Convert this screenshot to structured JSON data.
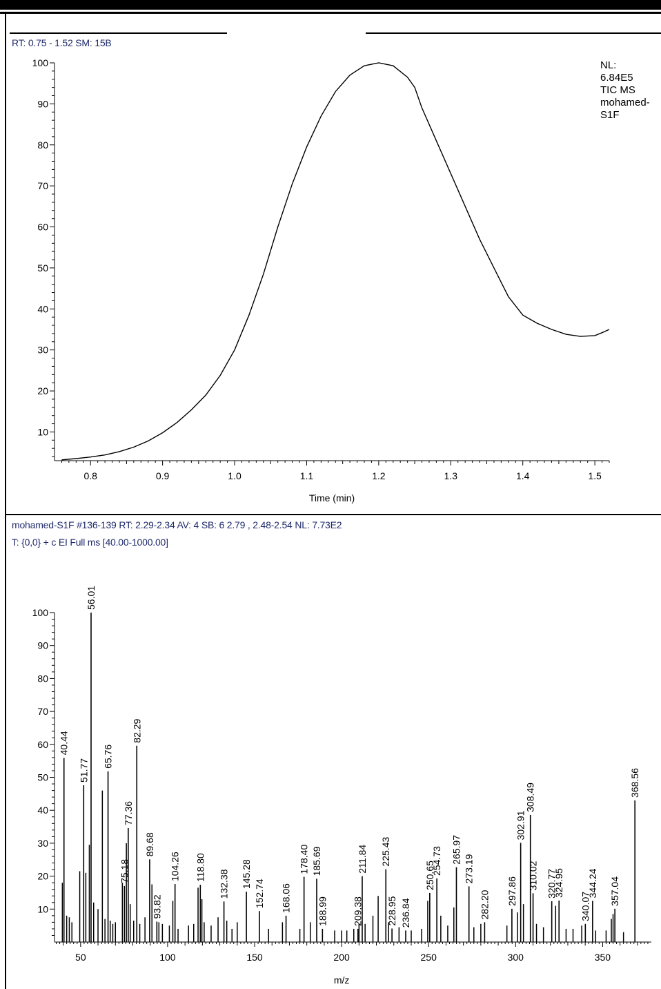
{
  "chart_data": [
    {
      "type": "line",
      "header": "RT: 0.75 - 1.52   SM: 15B",
      "info": [
        "NL:",
        "6.84E5",
        "TIC  MS",
        "mohamed-",
        "S1F"
      ],
      "xlabel": "Time (min)",
      "ylabel": "",
      "xlim": [
        0.75,
        1.52
      ],
      "ylim": [
        3,
        100
      ],
      "xticks": [
        "0.8",
        "0.9",
        "1.0",
        "1.1",
        "1.2",
        "1.3",
        "1.4",
        "1.5"
      ],
      "yticks": [
        "10",
        "20",
        "30",
        "40",
        "50",
        "60",
        "70",
        "80",
        "90",
        "100"
      ],
      "x": [
        0.76,
        0.78,
        0.8,
        0.82,
        0.84,
        0.86,
        0.88,
        0.9,
        0.92,
        0.94,
        0.96,
        0.98,
        1.0,
        1.02,
        1.04,
        1.06,
        1.08,
        1.1,
        1.12,
        1.14,
        1.16,
        1.18,
        1.2,
        1.22,
        1.24,
        1.25,
        1.26,
        1.28,
        1.3,
        1.32,
        1.34,
        1.36,
        1.38,
        1.4,
        1.42,
        1.44,
        1.46,
        1.48,
        1.5,
        1.51,
        1.52
      ],
      "y": [
        3.2,
        3.5,
        3.9,
        4.4,
        5.2,
        6.3,
        7.8,
        9.8,
        12.3,
        15.4,
        19.0,
        23.8,
        30.0,
        38.5,
        48.5,
        60.0,
        70.5,
        79.5,
        87.0,
        93.0,
        97.0,
        99.3,
        100.0,
        99.3,
        96.5,
        94.0,
        89.0,
        81.0,
        73.0,
        65.0,
        57.0,
        50.0,
        43.0,
        38.5,
        36.5,
        35.0,
        33.8,
        33.3,
        33.5,
        34.2,
        35.0
      ]
    },
    {
      "type": "bar",
      "header1": "mohamed-S1F #136-139   RT: 2.29-2.34   AV: 4   SB: 6  2.79 , 2.48-2.54   NL: 7.73E2",
      "header2": "T: {0,0}  + c EI Full ms [40.00-1000.00]",
      "xlabel": "m/z",
      "ylabel": "",
      "xlim": [
        35,
        378
      ],
      "ylim": [
        0,
        100
      ],
      "xticks": [
        "50",
        "100",
        "150",
        "200",
        "250",
        "300",
        "350"
      ],
      "yticks": [
        "10",
        "20",
        "30",
        "40",
        "50",
        "60",
        "70",
        "80",
        "90",
        "100"
      ],
      "labeled_peaks": [
        {
          "label": "40.44",
          "mz": 40.44,
          "y": 55.9
        },
        {
          "label": "51.77",
          "mz": 51.77,
          "y": 47.6
        },
        {
          "label": "56.01",
          "mz": 56.01,
          "y": 100
        },
        {
          "label": "65.76",
          "mz": 65.76,
          "y": 51.8
        },
        {
          "label": "75.18",
          "mz": 75.18,
          "y": 17.0
        },
        {
          "label": "77.36",
          "mz": 77.36,
          "y": 34.6
        },
        {
          "label": "82.29",
          "mz": 82.29,
          "y": 59.6
        },
        {
          "label": "89.68",
          "mz": 89.68,
          "y": 25.1
        },
        {
          "label": "93.82",
          "mz": 93.82,
          "y": 6.2
        },
        {
          "label": "104.26",
          "mz": 104.26,
          "y": 17.6
        },
        {
          "label": "118.80",
          "mz": 118.8,
          "y": 17.4
        },
        {
          "label": "132.38",
          "mz": 132.38,
          "y": 12.3
        },
        {
          "label": "145.28",
          "mz": 145.28,
          "y": 15.3
        },
        {
          "label": "152.74",
          "mz": 152.74,
          "y": 9.4
        },
        {
          "label": "168.06",
          "mz": 168.06,
          "y": 8.0
        },
        {
          "label": "178.40",
          "mz": 178.4,
          "y": 19.8
        },
        {
          "label": "185.69",
          "mz": 185.69,
          "y": 19.2
        },
        {
          "label": "188.99",
          "mz": 188.99,
          "y": 4.0
        },
        {
          "label": "209.38",
          "mz": 209.38,
          "y": 4.0
        },
        {
          "label": "211.84",
          "mz": 211.84,
          "y": 20.0
        },
        {
          "label": "225.43",
          "mz": 225.43,
          "y": 22.1
        },
        {
          "label": "228.95",
          "mz": 228.95,
          "y": 4.1
        },
        {
          "label": "236.84",
          "mz": 236.84,
          "y": 3.5
        },
        {
          "label": "250.65",
          "mz": 250.65,
          "y": 14.9
        },
        {
          "label": "254.73",
          "mz": 254.73,
          "y": 19.3
        },
        {
          "label": "265.97",
          "mz": 265.97,
          "y": 22.7
        },
        {
          "label": "273.19",
          "mz": 273.19,
          "y": 16.9
        },
        {
          "label": "282.20",
          "mz": 282.2,
          "y": 6.0
        },
        {
          "label": "297.86",
          "mz": 297.86,
          "y": 10.1
        },
        {
          "label": "302.91",
          "mz": 302.91,
          "y": 30.1
        },
        {
          "label": "308.49",
          "mz": 308.49,
          "y": 38.6
        },
        {
          "label": "310.02",
          "mz": 310.02,
          "y": 14.8
        },
        {
          "label": "320.77",
          "mz": 320.77,
          "y": 12.4
        },
        {
          "label": "324.95",
          "mz": 324.95,
          "y": 12.6
        },
        {
          "label": "340.07",
          "mz": 340.07,
          "y": 5.5
        },
        {
          "label": "344.24",
          "mz": 344.24,
          "y": 12.5
        },
        {
          "label": "357.04",
          "mz": 357.04,
          "y": 10.1
        },
        {
          "label": "368.56",
          "mz": 368.56,
          "y": 43.0
        }
      ],
      "minor_peaks": [
        {
          "mz": 39.5,
          "y": 18.0
        },
        {
          "mz": 42.0,
          "y": 8.0
        },
        {
          "mz": 43.5,
          "y": 7.5
        },
        {
          "mz": 45.0,
          "y": 6.0
        },
        {
          "mz": 49.5,
          "y": 21.5
        },
        {
          "mz": 53.0,
          "y": 21.0
        },
        {
          "mz": 55.0,
          "y": 29.5
        },
        {
          "mz": 57.5,
          "y": 12.0
        },
        {
          "mz": 60.0,
          "y": 10.0
        },
        {
          "mz": 62.5,
          "y": 46.0
        },
        {
          "mz": 64.0,
          "y": 7.0
        },
        {
          "mz": 67.0,
          "y": 6.5
        },
        {
          "mz": 68.5,
          "y": 5.5
        },
        {
          "mz": 70.0,
          "y": 6.0
        },
        {
          "mz": 74.0,
          "y": 18.0
        },
        {
          "mz": 76.3,
          "y": 30.0
        },
        {
          "mz": 78.5,
          "y": 11.5
        },
        {
          "mz": 80.5,
          "y": 6.5
        },
        {
          "mz": 84.0,
          "y": 5.5
        },
        {
          "mz": 87.0,
          "y": 7.5
        },
        {
          "mz": 91.0,
          "y": 17.5
        },
        {
          "mz": 95.0,
          "y": 6.0
        },
        {
          "mz": 97.0,
          "y": 5.5
        },
        {
          "mz": 101.0,
          "y": 5.0
        },
        {
          "mz": 103.0,
          "y": 12.5
        },
        {
          "mz": 106.0,
          "y": 4.0
        },
        {
          "mz": 112.0,
          "y": 5.0
        },
        {
          "mz": 115.0,
          "y": 5.5
        },
        {
          "mz": 117.5,
          "y": 16.5
        },
        {
          "mz": 119.7,
          "y": 13.0
        },
        {
          "mz": 121.0,
          "y": 6.0
        },
        {
          "mz": 125.0,
          "y": 5.0
        },
        {
          "mz": 129.0,
          "y": 7.5
        },
        {
          "mz": 134.0,
          "y": 6.5
        },
        {
          "mz": 137.0,
          "y": 4.0
        },
        {
          "mz": 140.0,
          "y": 6.0
        },
        {
          "mz": 158.0,
          "y": 4.0
        },
        {
          "mz": 166.0,
          "y": 6.0
        },
        {
          "mz": 176.0,
          "y": 4.0
        },
        {
          "mz": 182.0,
          "y": 6.0
        },
        {
          "mz": 196.0,
          "y": 3.5
        },
        {
          "mz": 200.0,
          "y": 3.5
        },
        {
          "mz": 203.0,
          "y": 3.5
        },
        {
          "mz": 207.0,
          "y": 4.0
        },
        {
          "mz": 210.0,
          "y": 5.5
        },
        {
          "mz": 213.5,
          "y": 5.5
        },
        {
          "mz": 218.0,
          "y": 8.0
        },
        {
          "mz": 221.0,
          "y": 14.0
        },
        {
          "mz": 227.0,
          "y": 6.0
        },
        {
          "mz": 233.0,
          "y": 4.5
        },
        {
          "mz": 240.0,
          "y": 3.5
        },
        {
          "mz": 246.0,
          "y": 4.0
        },
        {
          "mz": 249.5,
          "y": 12.5
        },
        {
          "mz": 257.0,
          "y": 8.0
        },
        {
          "mz": 261.0,
          "y": 5.0
        },
        {
          "mz": 264.5,
          "y": 10.5
        },
        {
          "mz": 276.0,
          "y": 4.5
        },
        {
          "mz": 280.0,
          "y": 5.5
        },
        {
          "mz": 295.0,
          "y": 5.0
        },
        {
          "mz": 301.0,
          "y": 9.0
        },
        {
          "mz": 304.5,
          "y": 11.5
        },
        {
          "mz": 312.0,
          "y": 5.5
        },
        {
          "mz": 316.0,
          "y": 4.5
        },
        {
          "mz": 323.0,
          "y": 11.0
        },
        {
          "mz": 329.0,
          "y": 4.0
        },
        {
          "mz": 333.0,
          "y": 4.0
        },
        {
          "mz": 338.0,
          "y": 5.0
        },
        {
          "mz": 346.0,
          "y": 3.5
        },
        {
          "mz": 352.0,
          "y": 3.5
        },
        {
          "mz": 355.0,
          "y": 7.0
        },
        {
          "mz": 356.0,
          "y": 8.5
        },
        {
          "mz": 362.0,
          "y": 3.0
        }
      ]
    }
  ]
}
